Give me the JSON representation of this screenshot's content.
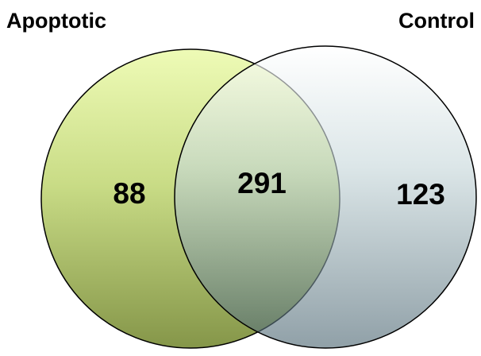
{
  "sets": [
    {
      "label": "Apoptotic"
    },
    {
      "label": "Control"
    }
  ],
  "regions": {
    "only_first": "88",
    "both": "291",
    "only_second": "123"
  }
}
